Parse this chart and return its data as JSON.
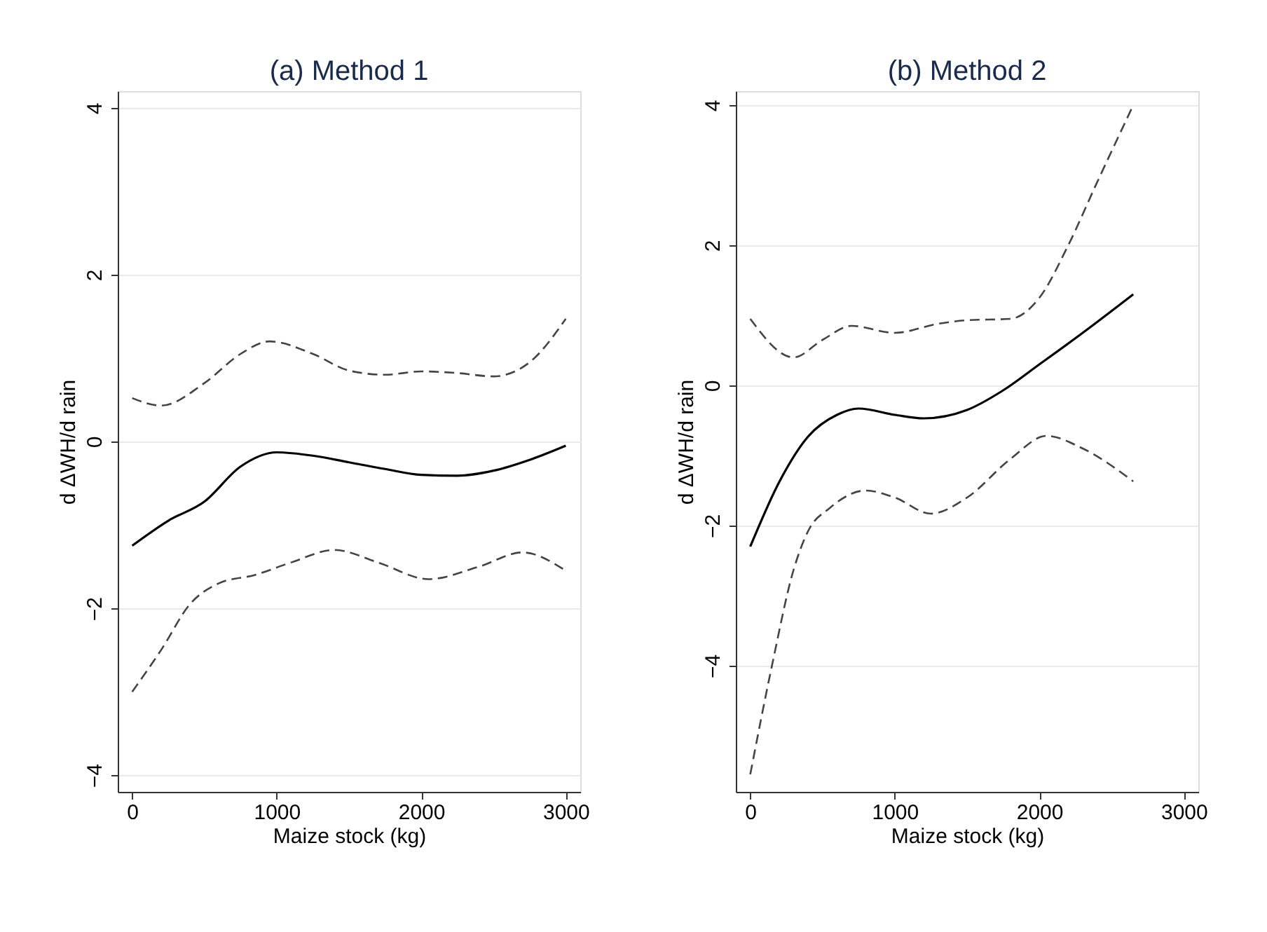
{
  "chart_data": [
    {
      "type": "line",
      "title": "(a) Method 1",
      "xlabel": "Maize stock (kg)",
      "ylabel": "d ΔWH/d rain",
      "xlim": [
        -100,
        3100
      ],
      "xticks": [
        0,
        1000,
        2000,
        3000
      ],
      "ylim": [
        -4.2,
        4.2
      ],
      "yticks": [
        -4,
        -2,
        0,
        2,
        4
      ],
      "grid": "y",
      "series": [
        {
          "color": "#000000",
          "line_style": "solid",
          "x": [
            0,
            250,
            500,
            750,
            1000,
            1250,
            1500,
            1750,
            2000,
            2250,
            2500,
            2750,
            3000
          ],
          "values": [
            -1.25,
            -0.95,
            -0.72,
            -0.3,
            -0.13,
            -0.17,
            -0.25,
            -0.33,
            -0.4,
            -0.41,
            -0.35,
            -0.22,
            -0.05
          ]
        },
        {
          "color": "#444444",
          "line_style": "dashed",
          "x": [
            0,
            200,
            500,
            750,
            950,
            1250,
            1500,
            1750,
            2000,
            2250,
            2500,
            2750,
            3000
          ],
          "values": [
            0.52,
            0.43,
            0.7,
            1.05,
            1.2,
            1.05,
            0.85,
            0.8,
            0.84,
            0.82,
            0.78,
            0.95,
            1.47
          ]
        },
        {
          "color": "#444444",
          "line_style": "dashed",
          "x": [
            0,
            200,
            400,
            600,
            850,
            1100,
            1400,
            1700,
            2050,
            2400,
            2700,
            3000
          ],
          "values": [
            -3.0,
            -2.5,
            -1.95,
            -1.7,
            -1.6,
            -1.45,
            -1.3,
            -1.45,
            -1.65,
            -1.5,
            -1.33,
            -1.55
          ]
        }
      ]
    },
    {
      "type": "line",
      "title": "(b) Method 2",
      "xlabel": "Maize stock (kg)",
      "ylabel": "d ΔWH/d rain",
      "xlim": [
        -100,
        3100
      ],
      "xticks": [
        0,
        1000,
        2000,
        3000
      ],
      "ylim": [
        -5.8,
        4.2
      ],
      "yticks": [
        -4,
        -2,
        0,
        2,
        4
      ],
      "grid": "y",
      "series": [
        {
          "color": "#000000",
          "line_style": "solid",
          "x": [
            0,
            200,
            400,
            600,
            750,
            1000,
            1200,
            1500,
            1750,
            2000,
            2300,
            2650
          ],
          "values": [
            -2.3,
            -1.38,
            -0.73,
            -0.42,
            -0.33,
            -0.42,
            -0.47,
            -0.35,
            -0.07,
            0.3,
            0.75,
            1.3
          ]
        },
        {
          "color": "#444444",
          "line_style": "dashed",
          "x": [
            0,
            300,
            500,
            700,
            1000,
            1300,
            1500,
            1800,
            2000,
            2200,
            2400,
            2650
          ],
          "values": [
            0.95,
            0.4,
            0.65,
            0.85,
            0.75,
            0.88,
            0.93,
            0.95,
            1.25,
            2.0,
            2.9,
            4.0
          ]
        },
        {
          "color": "#444444",
          "line_style": "dashed",
          "x": [
            0,
            150,
            300,
            400,
            550,
            800,
            1000,
            1250,
            1500,
            1800,
            2050,
            2300,
            2650
          ],
          "values": [
            -5.55,
            -4.0,
            -2.63,
            -2.08,
            -1.75,
            -1.5,
            -1.6,
            -1.83,
            -1.6,
            -1.05,
            -0.72,
            -0.9,
            -1.37
          ]
        }
      ]
    }
  ]
}
